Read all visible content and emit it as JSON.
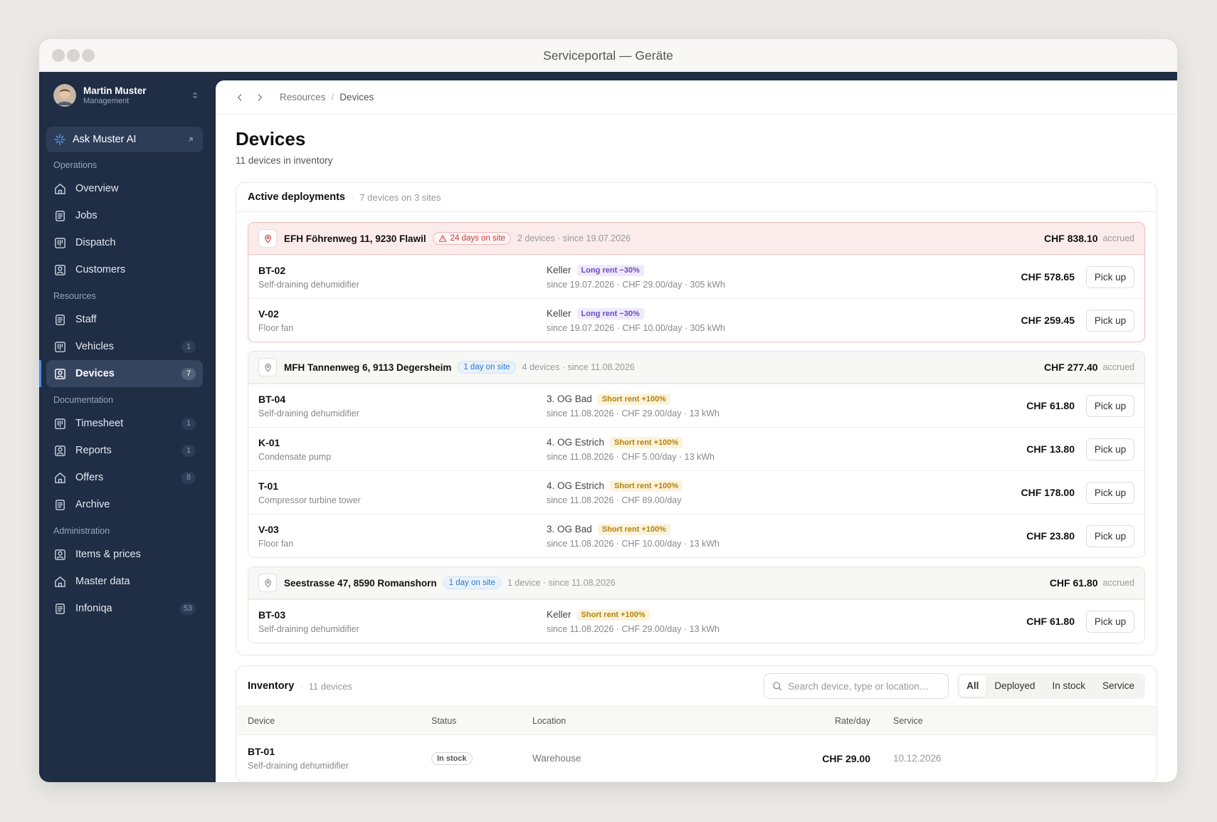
{
  "window": {
    "title": "Serviceportal — Geräte"
  },
  "user": {
    "name": "Martin Muster",
    "role": "Management"
  },
  "sidebar": {
    "ask": "Ask Muster AI",
    "groups": [
      {
        "title": "Operations",
        "items": [
          {
            "label": "Overview"
          },
          {
            "label": "Jobs"
          },
          {
            "label": "Dispatch"
          },
          {
            "label": "Customers"
          }
        ]
      },
      {
        "title": "Resources",
        "items": [
          {
            "label": "Staff"
          },
          {
            "label": "Vehicles",
            "badge": 1
          },
          {
            "label": "Devices",
            "badge": 7,
            "active": true
          }
        ]
      },
      {
        "title": "Documentation",
        "items": [
          {
            "label": "Timesheet",
            "badge": 1
          },
          {
            "label": "Reports",
            "badge": 1
          },
          {
            "label": "Offers",
            "badge": 8
          },
          {
            "label": "Archive"
          }
        ]
      },
      {
        "title": "Administration",
        "items": [
          {
            "label": "Items & prices"
          },
          {
            "label": "Master data"
          },
          {
            "label": "Infoniqa",
            "badge": 53
          }
        ]
      }
    ]
  },
  "breadcrumb": [
    "Resources",
    "Devices"
  ],
  "page": {
    "title": "Devices",
    "subtitle": "11 devices in inventory"
  },
  "deployments": {
    "title": "Active deployments",
    "summary": "7 devices on 3 sites",
    "sites": [
      {
        "address": "EFH Föhrenweg 11, 9230 Flawil",
        "badge": "24 days on site",
        "alert": true,
        "meta": "2 devices · since 19.07.2026",
        "total": "CHF 838.10",
        "total_note": "accrued",
        "devices": [
          {
            "id": "BT-02",
            "type": "Self-draining dehumidifier",
            "room": "Keller",
            "tag": "Long rent −30%",
            "details": "since 19.07.2026 · CHF 29.00/day · 305 kWh",
            "amount": "CHF 578.65",
            "action": "Pick up"
          },
          {
            "id": "V-02",
            "type": "Floor fan",
            "room": "Keller",
            "tag": "Long rent −30%",
            "details": "since 19.07.2026 · CHF 10.00/day · 305 kWh",
            "amount": "CHF 259.45",
            "action": "Pick up"
          }
        ]
      },
      {
        "address": "MFH Tannenweg 6, 9113 Degersheim",
        "badge": "1 day on site",
        "alert": false,
        "meta": "4 devices · since 11.08.2026",
        "total": "CHF 277.40",
        "total_note": "accrued",
        "devices": [
          {
            "id": "BT-04",
            "type": "Self-draining dehumidifier",
            "room": "3. OG Bad",
            "tag": "Short rent +100%",
            "details": "since 11.08.2026 · CHF 29.00/day · 13 kWh",
            "amount": "CHF 61.80",
            "action": "Pick up"
          },
          {
            "id": "K-01",
            "type": "Condensate pump",
            "room": "4. OG Estrich",
            "tag": "Short rent +100%",
            "details": "since 11.08.2026 · CHF 5.00/day · 13 kWh",
            "amount": "CHF 13.80",
            "action": "Pick up"
          },
          {
            "id": "T-01",
            "type": "Compressor turbine tower",
            "room": "4. OG Estrich",
            "tag": "Short rent +100%",
            "details": "since 11.08.2026 · CHF 89.00/day",
            "amount": "CHF 178.00",
            "action": "Pick up"
          },
          {
            "id": "V-03",
            "type": "Floor fan",
            "room": "3. OG Bad",
            "tag": "Short rent +100%",
            "details": "since 11.08.2026 · CHF 10.00/day · 13 kWh",
            "amount": "CHF 23.80",
            "action": "Pick up"
          }
        ]
      },
      {
        "address": "Seestrasse 47, 8590 Romanshorn",
        "badge": "1 day on site",
        "alert": false,
        "meta": "1 device · since 11.08.2026",
        "total": "CHF 61.80",
        "total_note": "accrued",
        "devices": [
          {
            "id": "BT-03",
            "type": "Self-draining dehumidifier",
            "room": "Keller",
            "tag": "Short rent +100%",
            "details": "since 11.08.2026 · CHF 29.00/day · 13 kWh",
            "amount": "CHF 61.80",
            "action": "Pick up"
          }
        ]
      }
    ]
  },
  "inventory": {
    "title": "Inventory",
    "summary": "11 devices",
    "search_placeholder": "Search device, type or location…",
    "filters": [
      "All",
      "Deployed",
      "In stock",
      "Service"
    ],
    "columns": [
      "Device",
      "Status",
      "Location",
      "Rate/day",
      "Service"
    ],
    "rows": [
      {
        "id": "BT-01",
        "type": "Self-draining dehumidifier",
        "status": "In stock",
        "location": "Warehouse",
        "rate": "CHF 29.00",
        "service": "10.12.2026"
      }
    ]
  }
}
